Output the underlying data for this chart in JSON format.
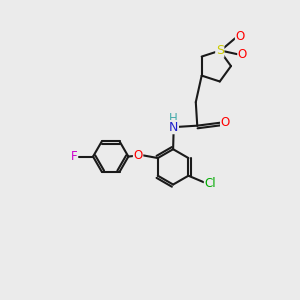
{
  "bg_color": "#ebebeb",
  "bond_color": "#1a1a1a",
  "bond_width": 1.5,
  "atoms": {
    "S": {
      "color": "#cccc00"
    },
    "O": {
      "color": "#ff0000"
    },
    "N": {
      "color": "#2222cc"
    },
    "F": {
      "color": "#cc00cc"
    },
    "Cl": {
      "color": "#00aa00"
    },
    "H": {
      "color": "#44aaaa"
    }
  },
  "fontsize": 8.5,
  "ring_r": 0.6,
  "thio_r": 0.55
}
